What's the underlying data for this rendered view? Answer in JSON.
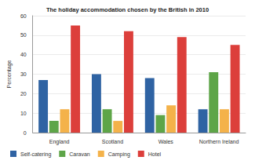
{
  "chart_data": {
    "type": "bar",
    "title": "The holiday accommodation chosen by the British in 2010",
    "y_label": "Percentage",
    "categories": [
      "England",
      "Scotland",
      "Wales",
      "Northern Ireland"
    ],
    "series": [
      {
        "name": "Self-catering",
        "color": "#2f63a3",
        "values": [
          27,
          30,
          28,
          12
        ]
      },
      {
        "name": "Caravan",
        "color": "#5ea548",
        "values": [
          6,
          12,
          9,
          31
        ]
      },
      {
        "name": "Camping",
        "color": "#f4b24a",
        "values": [
          12,
          6,
          14,
          12
        ]
      },
      {
        "name": "Hotel",
        "color": "#dc3f3b",
        "values": [
          55,
          52,
          49,
          45
        ]
      }
    ],
    "ylim": [
      0,
      60
    ],
    "yticks": [
      0,
      10,
      20,
      30,
      40,
      50,
      60
    ],
    "grid": true,
    "legend": "bottom"
  }
}
